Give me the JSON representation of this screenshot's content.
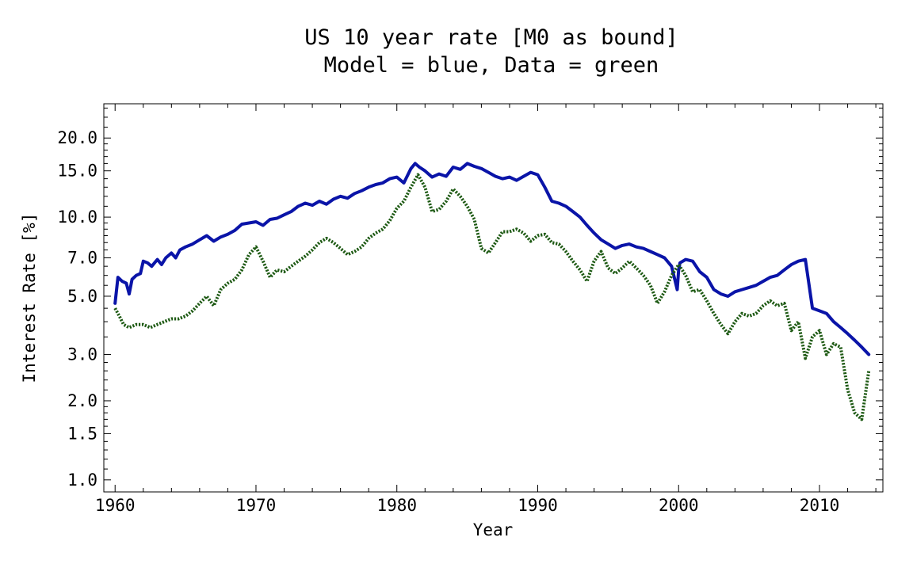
{
  "chart_data": {
    "type": "line",
    "title": "US 10 year rate [M0 as bound]",
    "subtitle": "Model = blue, Data = green",
    "xlabel": "Year",
    "ylabel": "Interest Rate [%]",
    "xlim": [
      1959.2,
      2014.5
    ],
    "ylim": [
      0.9,
      27
    ],
    "yscale": "log",
    "grid": false,
    "xticks": [
      1960,
      1970,
      1980,
      1990,
      2000,
      2010
    ],
    "yticks": [
      "1.0",
      "1.5",
      "2.0",
      "3.0",
      "5.0",
      "7.0",
      "10.0",
      "15.0",
      "20.0"
    ],
    "colors": {
      "model": "#0a14a8",
      "data": "#1e5a14"
    },
    "series": [
      {
        "key": "model",
        "style": "solid",
        "x": [
          1960.0,
          1960.2,
          1960.5,
          1960.8,
          1961.0,
          1961.2,
          1961.5,
          1961.8,
          1962.0,
          1962.3,
          1962.6,
          1963.0,
          1963.3,
          1963.6,
          1964.0,
          1964.3,
          1964.6,
          1965.0,
          1965.5,
          1966.0,
          1966.5,
          1967.0,
          1967.5,
          1968.0,
          1968.5,
          1969.0,
          1969.5,
          1970.0,
          1970.5,
          1971.0,
          1971.5,
          1972.0,
          1972.5,
          1973.0,
          1973.5,
          1974.0,
          1974.5,
          1975.0,
          1975.5,
          1976.0,
          1976.5,
          1977.0,
          1977.5,
          1978.0,
          1978.5,
          1979.0,
          1979.5,
          1980.0,
          1980.5,
          1981.0,
          1981.3,
          1981.6,
          1982.0,
          1982.5,
          1983.0,
          1983.5,
          1984.0,
          1984.5,
          1985.0,
          1985.5,
          1986.0,
          1986.5,
          1987.0,
          1987.5,
          1988.0,
          1988.5,
          1989.0,
          1989.5,
          1990.0,
          1990.5,
          1991.0,
          1991.5,
          1992.0,
          1992.5,
          1993.0,
          1993.5,
          1994.0,
          1994.5,
          1995.0,
          1995.5,
          1996.0,
          1996.5,
          1997.0,
          1997.5,
          1998.0,
          1998.5,
          1999.0,
          1999.5,
          1999.9,
          2000.0,
          2000.1,
          2000.5,
          2001.0,
          2001.5,
          2002.0,
          2002.5,
          2003.0,
          2003.5,
          2004.0,
          2004.5,
          2005.0,
          2005.5,
          2006.0,
          2006.5,
          2007.0,
          2007.5,
          2008.0,
          2008.5,
          2009.0,
          2009.5,
          2010.0,
          2010.5,
          2011.0,
          2011.5,
          2012.0,
          2012.5,
          2013.0,
          2013.5
        ],
        "y": [
          4.7,
          5.9,
          5.7,
          5.6,
          5.1,
          5.8,
          6.0,
          6.1,
          6.8,
          6.7,
          6.5,
          6.9,
          6.6,
          7.0,
          7.3,
          7.0,
          7.5,
          7.7,
          7.9,
          8.2,
          8.5,
          8.1,
          8.4,
          8.6,
          8.9,
          9.4,
          9.5,
          9.6,
          9.3,
          9.8,
          9.9,
          10.2,
          10.5,
          11.0,
          11.3,
          11.1,
          11.5,
          11.2,
          11.7,
          12.0,
          11.8,
          12.3,
          12.6,
          13.0,
          13.3,
          13.5,
          14.0,
          14.2,
          13.5,
          15.3,
          16.0,
          15.5,
          15.0,
          14.2,
          14.6,
          14.3,
          15.5,
          15.2,
          16.0,
          15.6,
          15.3,
          14.8,
          14.3,
          14.0,
          14.2,
          13.8,
          14.3,
          14.8,
          14.5,
          13.0,
          11.5,
          11.3,
          11.0,
          10.5,
          10.0,
          9.3,
          8.7,
          8.2,
          7.9,
          7.6,
          7.8,
          7.9,
          7.7,
          7.6,
          7.4,
          7.2,
          7.0,
          6.5,
          5.3,
          6.3,
          6.7,
          6.9,
          6.8,
          6.2,
          5.9,
          5.3,
          5.1,
          5.0,
          5.2,
          5.3,
          5.4,
          5.5,
          5.7,
          5.9,
          6.0,
          6.3,
          6.6,
          6.8,
          6.9,
          4.5,
          4.4,
          4.3,
          4.0,
          3.8,
          3.6,
          3.4,
          3.2,
          3.0
        ]
      },
      {
        "key": "data",
        "style": "dotted",
        "x": [
          1960.0,
          1960.3,
          1960.6,
          1961.0,
          1961.5,
          1962.0,
          1962.5,
          1963.0,
          1963.5,
          1964.0,
          1964.5,
          1965.0,
          1965.5,
          1966.0,
          1966.5,
          1967.0,
          1967.5,
          1968.0,
          1968.5,
          1969.0,
          1969.5,
          1970.0,
          1970.5,
          1971.0,
          1971.5,
          1972.0,
          1972.5,
          1973.0,
          1973.5,
          1974.0,
          1974.5,
          1975.0,
          1975.5,
          1976.0,
          1976.5,
          1977.0,
          1977.5,
          1978.0,
          1978.5,
          1979.0,
          1979.5,
          1980.0,
          1980.5,
          1981.0,
          1981.5,
          1982.0,
          1982.5,
          1983.0,
          1983.5,
          1984.0,
          1984.5,
          1985.0,
          1985.5,
          1986.0,
          1986.5,
          1987.0,
          1987.5,
          1988.0,
          1988.5,
          1989.0,
          1989.5,
          1990.0,
          1990.5,
          1991.0,
          1991.5,
          1992.0,
          1992.5,
          1993.0,
          1993.5,
          1994.0,
          1994.5,
          1995.0,
          1995.5,
          1996.0,
          1996.5,
          1997.0,
          1997.5,
          1998.0,
          1998.5,
          1999.0,
          1999.5,
          2000.0,
          2000.5,
          2001.0,
          2001.5,
          2002.0,
          2002.5,
          2003.0,
          2003.5,
          2004.0,
          2004.5,
          2005.0,
          2005.5,
          2006.0,
          2006.5,
          2007.0,
          2007.5,
          2008.0,
          2008.5,
          2009.0,
          2009.5,
          2010.0,
          2010.5,
          2011.0,
          2011.5,
          2012.0,
          2012.5,
          2013.0,
          2013.5
        ],
        "y": [
          4.5,
          4.2,
          3.9,
          3.8,
          3.9,
          3.9,
          3.8,
          3.9,
          4.0,
          4.1,
          4.1,
          4.2,
          4.4,
          4.7,
          5.0,
          4.6,
          5.3,
          5.6,
          5.8,
          6.3,
          7.2,
          7.7,
          6.8,
          5.9,
          6.3,
          6.2,
          6.5,
          6.8,
          7.1,
          7.5,
          8.0,
          8.3,
          8.0,
          7.6,
          7.2,
          7.4,
          7.7,
          8.3,
          8.7,
          9.0,
          9.7,
          10.8,
          11.5,
          13.0,
          14.5,
          13.0,
          10.5,
          10.7,
          11.5,
          12.8,
          12.0,
          11.0,
          9.8,
          7.6,
          7.3,
          8.0,
          8.8,
          8.8,
          9.0,
          8.7,
          8.1,
          8.5,
          8.6,
          8.0,
          7.9,
          7.4,
          6.8,
          6.3,
          5.7,
          6.8,
          7.4,
          6.4,
          6.1,
          6.4,
          6.8,
          6.4,
          6.0,
          5.5,
          4.7,
          5.2,
          6.0,
          6.6,
          6.0,
          5.2,
          5.3,
          4.8,
          4.3,
          3.9,
          3.6,
          4.0,
          4.3,
          4.2,
          4.3,
          4.6,
          4.8,
          4.6,
          4.7,
          3.7,
          4.0,
          2.9,
          3.5,
          3.7,
          3.0,
          3.3,
          3.2,
          2.2,
          1.8,
          1.7,
          2.6
        ]
      }
    ]
  }
}
